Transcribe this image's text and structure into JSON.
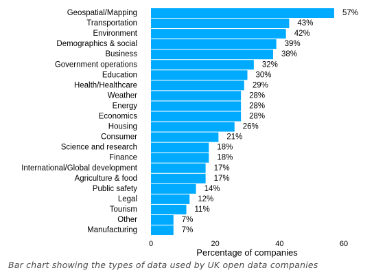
{
  "chart_data": {
    "type": "bar",
    "orientation": "horizontal",
    "categories": [
      "Geospatial/Mapping",
      "Transportation",
      "Environment",
      "Demographics & social",
      "Business",
      "Government operations",
      "Education",
      "Health/Healthcare",
      "Weather",
      "Energy",
      "Economics",
      "Housing",
      "Consumer",
      "Science and research",
      "Finance",
      "International/Global development",
      "Agriculture & food",
      "Public safety",
      "Legal",
      "Tourism",
      "Other",
      "Manufacturing"
    ],
    "values": [
      57,
      43,
      42,
      39,
      38,
      32,
      30,
      29,
      28,
      28,
      28,
      26,
      21,
      18,
      18,
      17,
      17,
      14,
      12,
      11,
      7,
      7
    ],
    "value_labels": [
      "57%",
      "43%",
      "42%",
      "39%",
      "38%",
      "32%",
      "30%",
      "29%",
      "28%",
      "28%",
      "28%",
      "26%",
      "21%",
      "18%",
      "18%",
      "17%",
      "17%",
      "14%",
      "12%",
      "11%",
      "7%",
      "7%"
    ],
    "xlabel": "Percentage of companies",
    "ylabel": "",
    "title": "",
    "xlim": [
      0,
      60
    ],
    "xticks": [
      0,
      20,
      40,
      60
    ],
    "grid": false,
    "bar_color": "#00aaff"
  },
  "caption": "Bar chart showing the types of data used by UK open data companies"
}
